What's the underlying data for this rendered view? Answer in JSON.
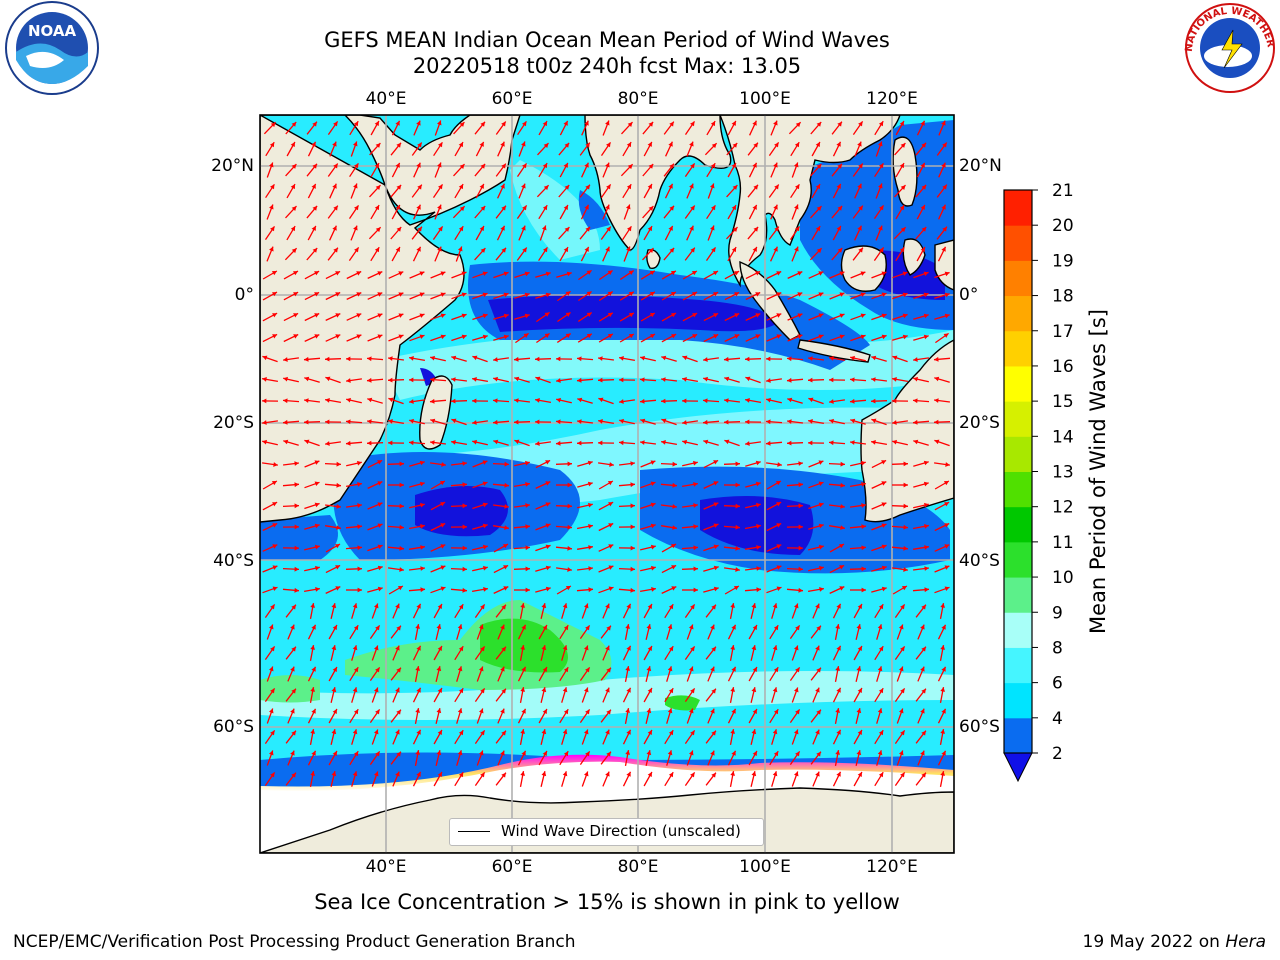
{
  "title_line1": "GEFS MEAN Indian Ocean Mean Period of Wind Waves",
  "title_line2": "20220518 t00z 240h fcst   Max: 13.05",
  "lon_ticks": [
    "40°E",
    "60°E",
    "80°E",
    "100°E",
    "120°E"
  ],
  "lat_ticks": [
    "20°N",
    "0°",
    "20°S",
    "40°S",
    "60°S"
  ],
  "colorbar": {
    "label": "Mean Period of Wind Waves [s]",
    "ticks": [
      "2",
      "4",
      "6",
      "8",
      "9",
      "10",
      "11",
      "12",
      "13",
      "14",
      "15",
      "16",
      "17",
      "18",
      "19",
      "20",
      "21"
    ],
    "colors": [
      "#0a6cf0",
      "#00e4ff",
      "#45f5ff",
      "#a8fff8",
      "#5cf08a",
      "#2ce02c",
      "#00c800",
      "#50e000",
      "#a8e800",
      "#d6f000",
      "#ffff00",
      "#ffd000",
      "#ffa800",
      "#ff8000",
      "#ff5000",
      "#ff2000"
    ],
    "extend_color": "#1010e8"
  },
  "legend": {
    "label": "Wind Wave Direction (unscaled)"
  },
  "subtitle": "Sea Ice Concentration > 15% is shown in pink to yellow",
  "footer_left": "NCEP/EMC/Verification Post Processing Product Generation Branch",
  "footer_right_prefix": "19 May 2022 on ",
  "footer_right_host": "Hera",
  "logos": {
    "left": "NOAA",
    "right_text": "NATIONAL WEATHER SERVICE"
  },
  "colors": {
    "land": "#efecdc",
    "arrow": "#ff0000",
    "grid": "#b0b0b0"
  }
}
